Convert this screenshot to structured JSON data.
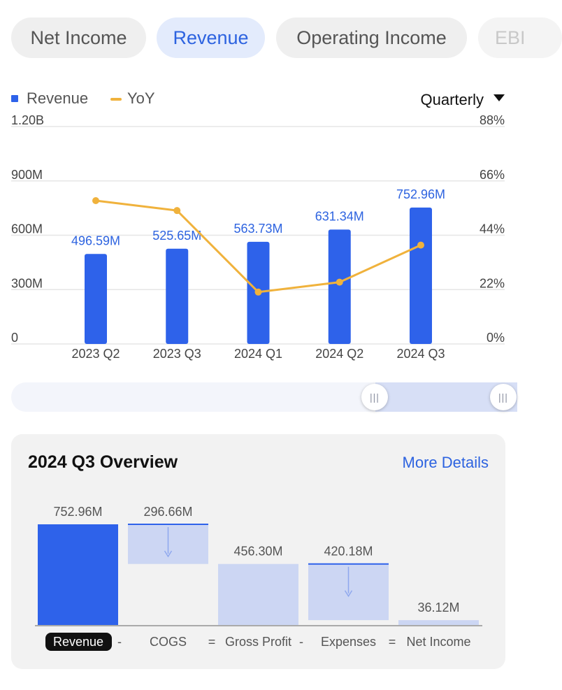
{
  "tabs": [
    {
      "label": "Net Income",
      "active": false
    },
    {
      "label": "Revenue",
      "active": true
    },
    {
      "label": "Operating Income",
      "active": false
    },
    {
      "label": "EBI",
      "active": false
    }
  ],
  "legend": {
    "bar_label": "Revenue",
    "line_label": "YoY"
  },
  "period_selector": {
    "value": "Quarterly"
  },
  "colors": {
    "bar": "#2e62ea",
    "line": "#f0b23c",
    "label_blue": "#2d63e0",
    "accent": "#2d63e0",
    "waterfall_light": "#ccd6f3"
  },
  "chart_data": {
    "type": "bar",
    "categories": [
      "2023 Q2",
      "2023 Q3",
      "2024 Q1",
      "2024 Q2",
      "2024 Q3"
    ],
    "series": [
      {
        "name": "Revenue",
        "type": "bar",
        "axis": "left",
        "values": [
          496.59,
          525.65,
          563.73,
          631.34,
          752.96
        ],
        "value_labels": [
          "496.59M",
          "525.65M",
          "563.73M",
          "631.34M",
          "752.96M"
        ]
      },
      {
        "name": "YoY",
        "type": "line",
        "axis": "right",
        "values": [
          58,
          54,
          21,
          25,
          40
        ]
      }
    ],
    "left_axis": {
      "ticks": [
        0,
        300,
        600,
        900,
        1200
      ],
      "tick_labels": [
        "0",
        "300M",
        "600M",
        "900M",
        "1.20B"
      ],
      "ylim": [
        0,
        1200
      ]
    },
    "right_axis": {
      "ticks": [
        0,
        22,
        44,
        66,
        88
      ],
      "tick_labels": [
        "0%",
        "22%",
        "44%",
        "66%",
        "88%"
      ],
      "ylim": [
        0,
        88
      ]
    },
    "grid": true,
    "legend_position": "top-left"
  },
  "range_slider": {
    "selected_start": 0.72,
    "selected_end": 1.0
  },
  "overview": {
    "title": "2024 Q3 Overview",
    "link_label": "More Details",
    "waterfall": {
      "type": "waterfall",
      "steps": [
        {
          "label": "Revenue",
          "value": 752.96,
          "value_label": "752.96M",
          "kind": "total",
          "highlighted": true
        },
        {
          "label": "COGS",
          "value": -296.66,
          "value_label": "296.66M",
          "kind": "decrease"
        },
        {
          "label": "Gross Profit",
          "value": 456.3,
          "value_label": "456.30M",
          "kind": "total"
        },
        {
          "label": "Expenses",
          "value": -420.18,
          "value_label": "420.18M",
          "kind": "decrease"
        },
        {
          "label": "Net Income",
          "value": 36.12,
          "value_label": "36.12M",
          "kind": "total"
        }
      ],
      "operators": [
        "-",
        "=",
        "-",
        "="
      ]
    }
  }
}
